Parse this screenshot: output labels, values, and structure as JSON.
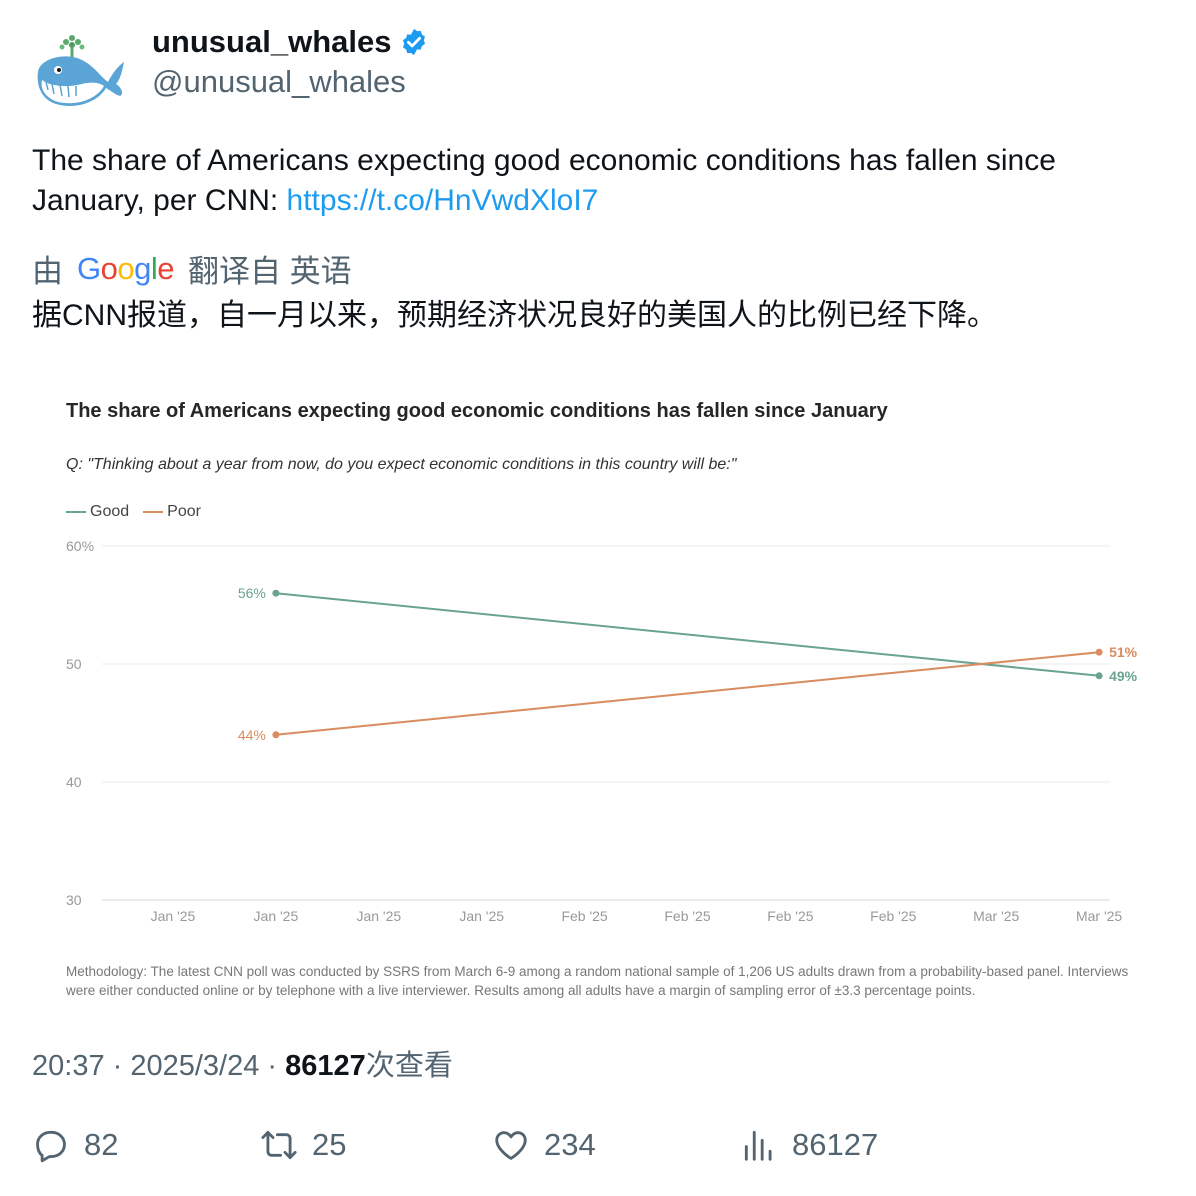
{
  "author": {
    "name": "unusual_whales",
    "handle": "@unusual_whales",
    "verified": true
  },
  "tweet": {
    "text_prefix": "The share of Americans expecting good economic conditions has fallen since January, per CNN: ",
    "link": "https://t.co/HnVwdXloI7"
  },
  "translation": {
    "by": "由",
    "provider": "Google",
    "from_label": "翻译自 英语",
    "text": "据CNN报道，自一月以来，预期经济状况良好的美国人的比例已经下降。"
  },
  "chart_data": {
    "type": "line",
    "title": "The share of Americans expecting good economic conditions has fallen since January",
    "subtitle": "Q: \"Thinking about a year from now, do you expect economic conditions in this country will be:\"",
    "x_tick_labels": [
      "Jan '25",
      "Jan '25",
      "Jan '25",
      "Jan '25",
      "Feb '25",
      "Feb '25",
      "Feb '25",
      "Feb '25",
      "Mar '25",
      "Mar '25"
    ],
    "y_ticks": [
      "60%",
      "50",
      "40",
      "30"
    ],
    "ylim": [
      30,
      60
    ],
    "grid": true,
    "legend_position": "top-left",
    "series": [
      {
        "name": "Good",
        "color": "#6aa390",
        "points": [
          {
            "x": 1,
            "y": 56,
            "label": "56%"
          },
          {
            "x": 9,
            "y": 49,
            "label": "49%"
          }
        ]
      },
      {
        "name": "Poor",
        "color": "#d98c5f",
        "points": [
          {
            "x": 1,
            "y": 44,
            "label": "44%"
          },
          {
            "x": 9,
            "y": 51,
            "label": "51%"
          }
        ]
      }
    ],
    "methodology": "Methodology: The latest CNN poll was conducted by SSRS from March 6-9 among a random national sample of 1,206 US adults drawn from a probability-based panel. Interviews were either conducted online or by telephone with a live interviewer. Results among all adults have a margin of sampling error of ±3.3 percentage points."
  },
  "meta": {
    "time": "20:37",
    "sep": " · ",
    "date": "2025/3/24",
    "views": "86127",
    "views_suffix": "次查看"
  },
  "actions": {
    "replies": "82",
    "retweets": "25",
    "likes": "234",
    "views": "86127"
  },
  "icons": {
    "verified": "verified-badge-icon",
    "reply": "reply-icon",
    "retweet": "retweet-icon",
    "like": "heart-icon",
    "views": "views-bar-icon"
  },
  "colors": {
    "link": "#1d9bf0",
    "verified": "#1d9bf0",
    "good": "#6aa390",
    "poor": "#d98c5f"
  }
}
